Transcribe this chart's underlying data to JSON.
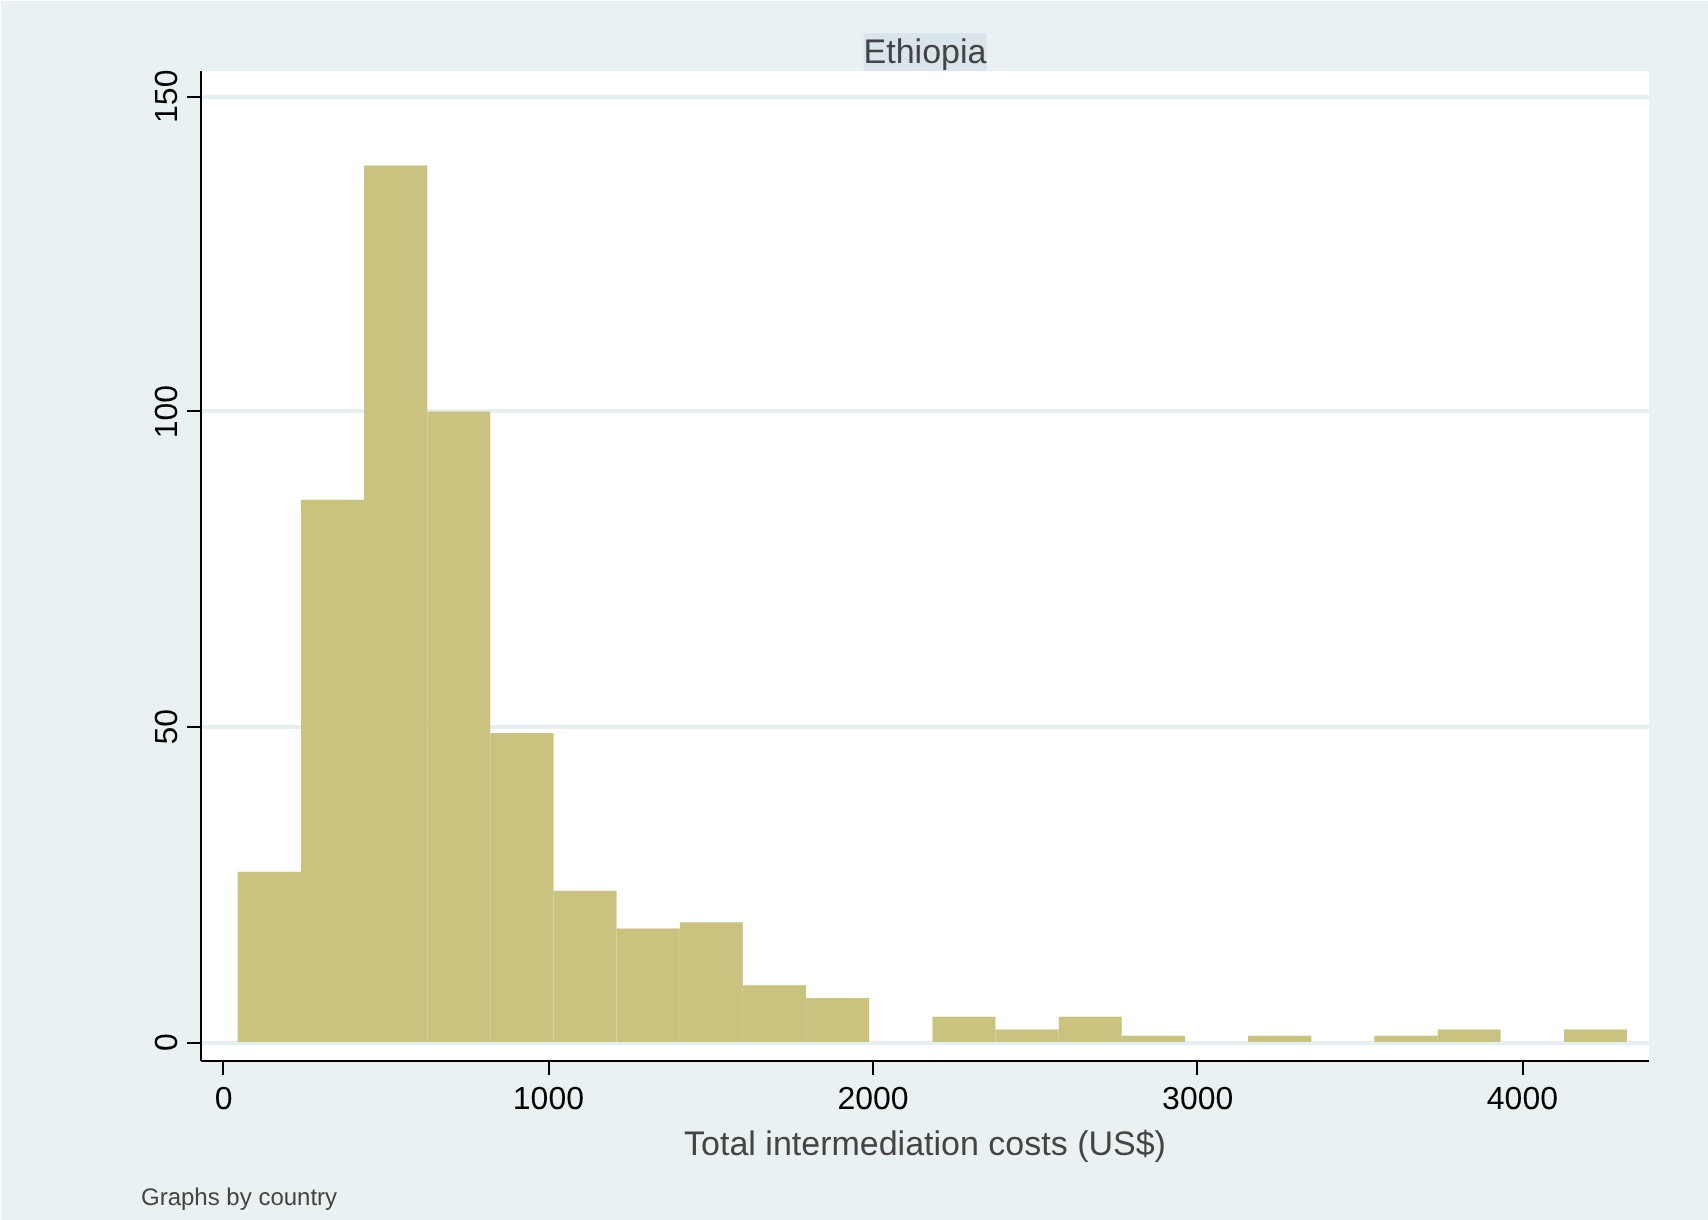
{
  "chart_data": {
    "type": "histogram",
    "title": "Ethiopia",
    "xlabel": "Total intermediation costs (US$)",
    "annotations": [
      "Graphs by country"
    ],
    "bins": [
      43,
      238,
      432,
      627,
      821,
      1016,
      1210,
      1405,
      1599,
      1794,
      1988,
      2183,
      2377,
      2572,
      2766,
      2961,
      3155,
      3350,
      3544,
      3739,
      3933,
      4128,
      4322
    ],
    "values": [
      27,
      86,
      139,
      100,
      49,
      24,
      18,
      19,
      9,
      7,
      0,
      4,
      2,
      4,
      1,
      0,
      1,
      0,
      1,
      2,
      0,
      2
    ],
    "color": "#c9c37f",
    "xlim": [
      -70,
      4390
    ],
    "ylim": [
      -3,
      154
    ],
    "xticks": [
      0,
      1000,
      2000,
      3000,
      4000
    ],
    "yticks": [
      0,
      50,
      100,
      150
    ],
    "grid": "y"
  }
}
